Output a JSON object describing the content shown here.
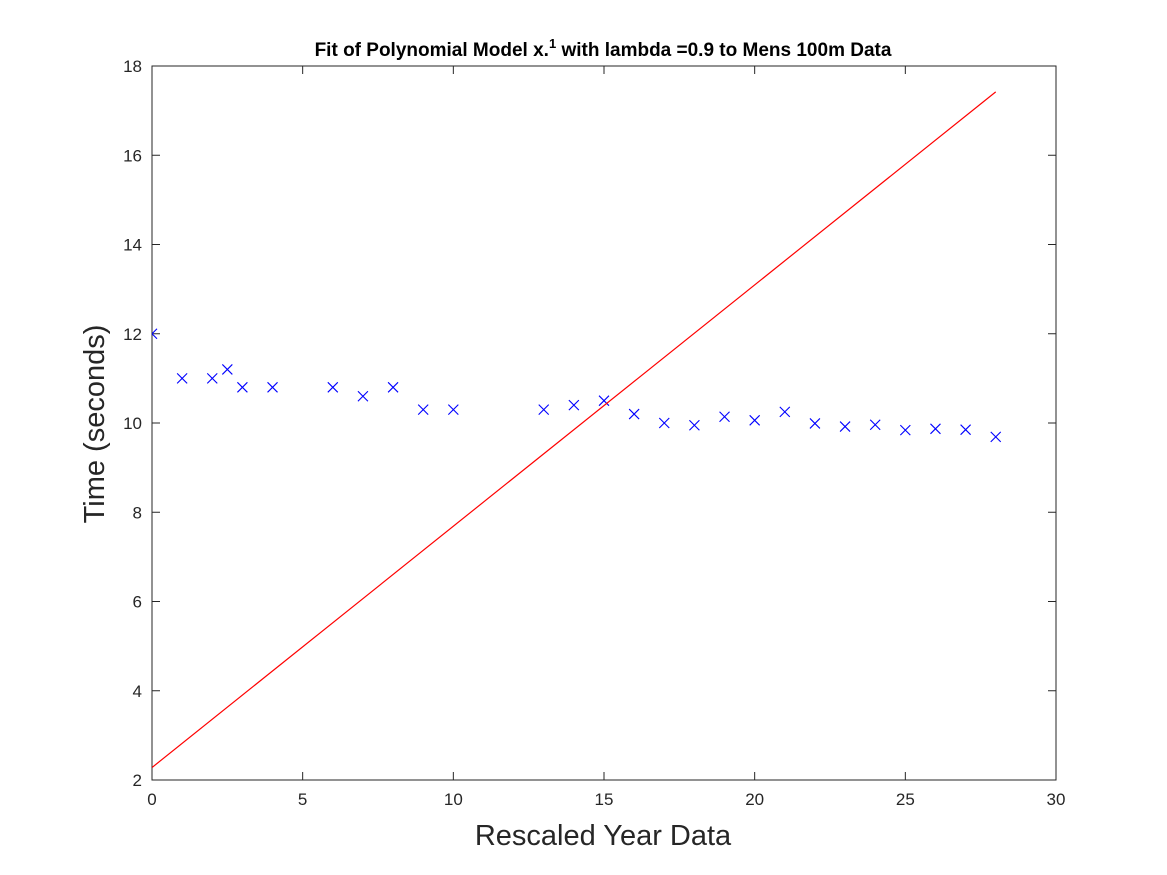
{
  "chart_data": {
    "type": "scatter",
    "title_main": "Fit of Polynomial Model x.",
    "title_sup": "1",
    "title_rest": " with lambda =0.9 to Mens 100m Data",
    "xlabel": "Rescaled Year Data",
    "ylabel": "Time (seconds)",
    "xlim": [
      0,
      30
    ],
    "ylim": [
      2,
      18
    ],
    "xticks": [
      0,
      5,
      10,
      15,
      20,
      25,
      30
    ],
    "yticks": [
      2,
      4,
      6,
      8,
      10,
      12,
      14,
      16,
      18
    ],
    "xtick_labels": [
      "0",
      "5",
      "10",
      "15",
      "20",
      "25",
      "30"
    ],
    "ytick_labels": [
      "2",
      "4",
      "6",
      "8",
      "10",
      "12",
      "14",
      "16",
      "18"
    ],
    "grid": false,
    "series": [
      {
        "kind": "markers",
        "marker": "x",
        "color": "#0000ff",
        "x": [
          0,
          1,
          2,
          2.5,
          3,
          4,
          6,
          7,
          8,
          9,
          10,
          13,
          14,
          15,
          16,
          17,
          18,
          19,
          20,
          21,
          22,
          23,
          24,
          25,
          26,
          27,
          28
        ],
        "y": [
          12.0,
          11.0,
          11.0,
          11.2,
          10.8,
          10.8,
          10.8,
          10.6,
          10.8,
          10.3,
          10.3,
          10.3,
          10.4,
          10.5,
          10.2,
          10.0,
          9.95,
          10.14,
          10.06,
          10.25,
          9.99,
          9.92,
          9.96,
          9.84,
          9.87,
          9.85,
          9.69
        ]
      },
      {
        "kind": "line",
        "color": "#ff0000",
        "x": [
          0,
          28
        ],
        "y": [
          2.28,
          17.42
        ]
      }
    ]
  }
}
